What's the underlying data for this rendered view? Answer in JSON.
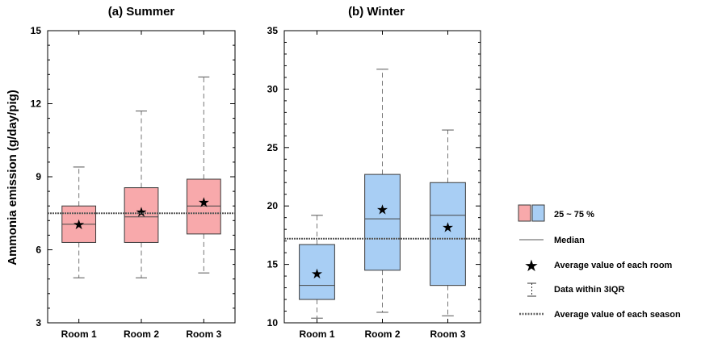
{
  "figure": {
    "ylabel": "Ammonia emission (g/day/pig)"
  },
  "chart_data": [
    {
      "type": "box",
      "title": "(a) Summer",
      "categories": [
        "Room 1",
        "Room 2",
        "Room 3"
      ],
      "ylim": [
        3,
        15
      ],
      "yticks": [
        3,
        6,
        9,
        12,
        15
      ],
      "box_color": "#f8a9ab",
      "box_edge_color": "#3a3a3a",
      "season_average": 7.5,
      "boxes": [
        {
          "whisker_low": 4.85,
          "q1": 6.3,
          "median": 7.05,
          "q3": 7.8,
          "whisker_high": 9.4,
          "mean": 7.05
        },
        {
          "whisker_low": 4.85,
          "q1": 6.3,
          "median": 7.35,
          "q3": 8.55,
          "whisker_high": 11.7,
          "mean": 7.55
        },
        {
          "whisker_low": 5.05,
          "q1": 6.65,
          "median": 7.8,
          "q3": 8.9,
          "whisker_high": 13.1,
          "mean": 7.95
        }
      ]
    },
    {
      "type": "box",
      "title": "(b) Winter",
      "categories": [
        "Room 1",
        "Room 2",
        "Room 3"
      ],
      "ylim": [
        10,
        35
      ],
      "yticks": [
        10,
        15,
        20,
        25,
        30,
        35
      ],
      "box_color": "#a8cef4",
      "box_edge_color": "#3a3a3a",
      "season_average": 17.2,
      "boxes": [
        {
          "whisker_low": 10.4,
          "q1": 12.0,
          "median": 13.2,
          "q3": 16.7,
          "whisker_high": 19.2,
          "mean": 14.2
        },
        {
          "whisker_low": 10.9,
          "q1": 14.5,
          "median": 18.9,
          "q3": 22.7,
          "whisker_high": 31.7,
          "mean": 19.7
        },
        {
          "whisker_low": 10.6,
          "q1": 13.2,
          "median": 19.2,
          "q3": 22.0,
          "whisker_high": 26.5,
          "mean": 18.2
        }
      ]
    }
  ],
  "legend": {
    "iqr": "25 ~ 75 %",
    "median": "Median",
    "mean": "Average value of each room",
    "whisker": "Data within  3IQR",
    "season_avg": "Average value of each season"
  }
}
